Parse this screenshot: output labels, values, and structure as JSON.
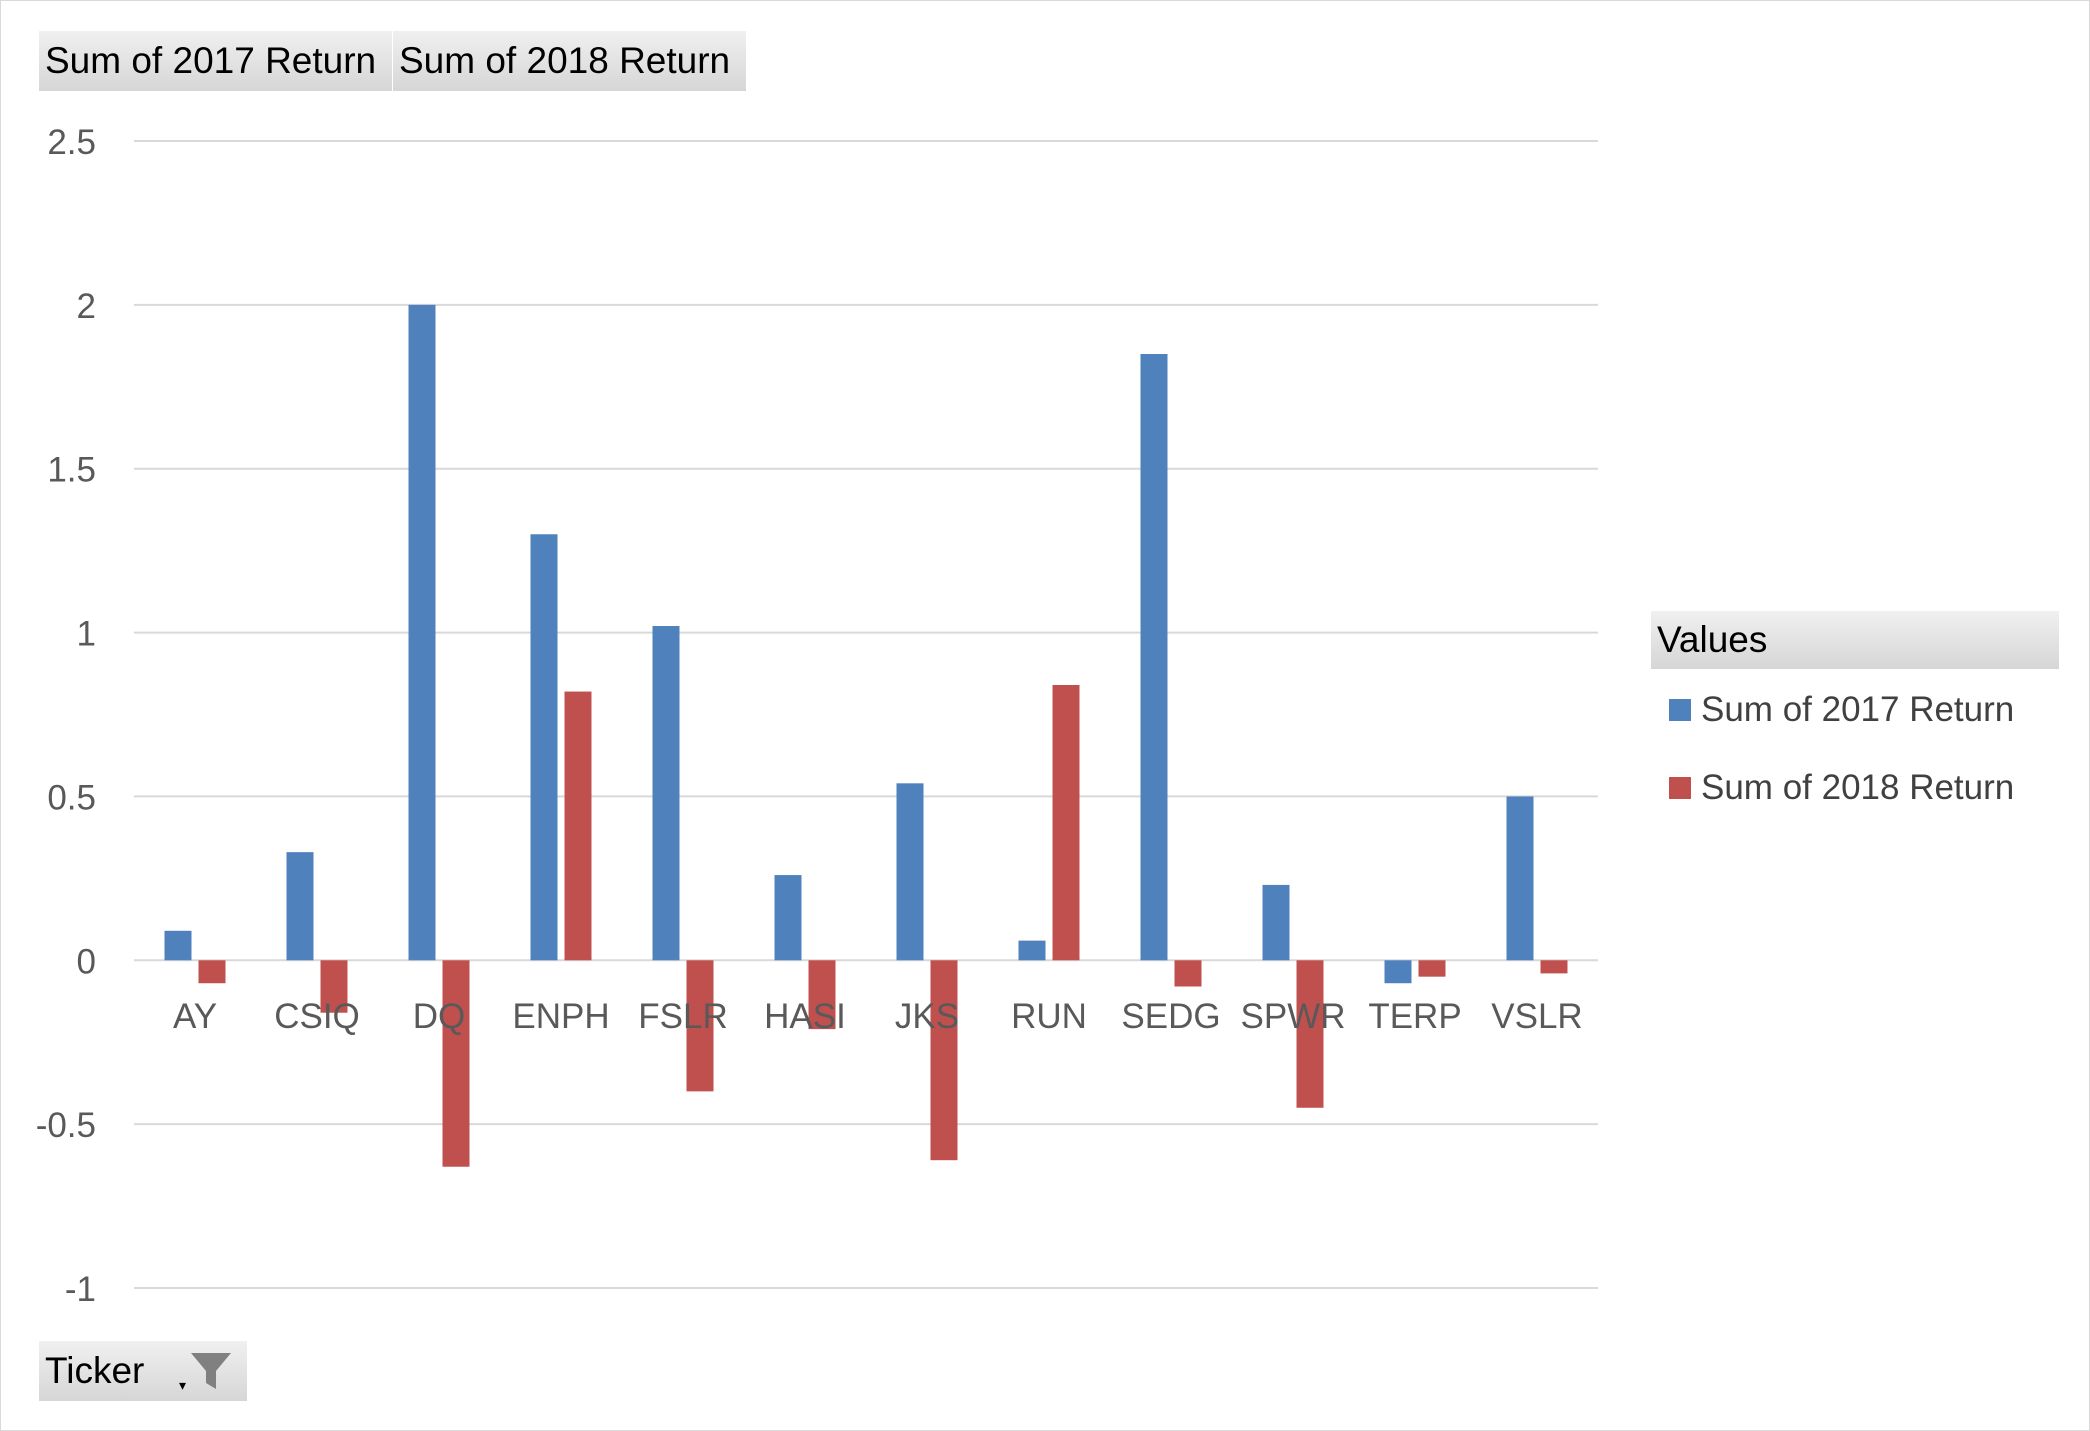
{
  "colors": {
    "series_2017": "#4f81bd",
    "series_2018": "#c0504d",
    "gridline": "#d9d9d9",
    "axis_text": "#595959"
  },
  "values_fields": [
    "Sum of 2017 Return",
    "Sum of 2018 Return"
  ],
  "axis_field": {
    "label": "Ticker",
    "dropdown_glyph": "▾",
    "icon": "filter-icon"
  },
  "legend": {
    "title": "Values",
    "items": [
      "Sum of 2017 Return",
      "Sum of 2018 Return"
    ]
  },
  "chart_data": {
    "type": "bar",
    "categories": [
      "AY",
      "CSIQ",
      "DQ",
      "ENPH",
      "FSLR",
      "HASI",
      "JKS",
      "RUN",
      "SEDG",
      "SPWR",
      "TERP",
      "VSLR"
    ],
    "series": [
      {
        "name": "Sum of 2017 Return",
        "values": [
          0.09,
          0.33,
          2.0,
          1.3,
          1.02,
          0.26,
          0.54,
          0.06,
          1.85,
          0.23,
          -0.07,
          0.5
        ]
      },
      {
        "name": "Sum of 2018 Return",
        "values": [
          -0.07,
          -0.16,
          -0.63,
          0.82,
          -0.4,
          -0.21,
          -0.61,
          0.84,
          -0.08,
          -0.45,
          -0.05,
          -0.04
        ]
      }
    ],
    "ylim": [
      -1,
      2.5
    ],
    "yticks": [
      "2.5",
      "2",
      "1.5",
      "1",
      "0.5",
      "0",
      "-0.5",
      "-1"
    ],
    "ytick_values": [
      2.5,
      2,
      1.5,
      1,
      0.5,
      0,
      -0.5,
      -1
    ],
    "grid": true,
    "legend_position": "right"
  }
}
